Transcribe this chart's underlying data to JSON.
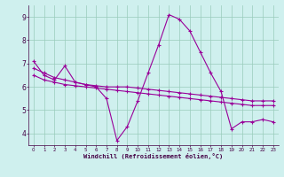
{
  "title": "",
  "xlabel": "Windchill (Refroidissement éolien,°C)",
  "bg_color": "#cff0ee",
  "line_color": "#990099",
  "grid_color": "#99ccbb",
  "xlim": [
    -0.5,
    23.5
  ],
  "ylim": [
    3.5,
    9.5
  ],
  "xticks": [
    0,
    1,
    2,
    3,
    4,
    5,
    6,
    7,
    8,
    9,
    10,
    11,
    12,
    13,
    14,
    15,
    16,
    17,
    18,
    19,
    20,
    21,
    22,
    23
  ],
  "yticks": [
    4,
    5,
    6,
    7,
    8,
    9
  ],
  "line1_x": [
    0,
    1,
    2,
    3,
    4,
    5,
    6,
    7,
    8,
    9,
    10,
    11,
    12,
    13,
    14,
    15,
    16,
    17,
    18,
    19,
    20,
    21,
    22,
    23
  ],
  "line1_y": [
    7.1,
    6.5,
    6.3,
    6.9,
    6.2,
    6.1,
    6.0,
    5.5,
    3.7,
    4.3,
    5.4,
    6.6,
    7.8,
    9.1,
    8.9,
    8.4,
    7.5,
    6.6,
    5.8,
    4.2,
    4.5,
    4.5,
    4.6,
    4.5
  ],
  "line2_x": [
    0,
    1,
    2,
    3,
    4,
    5,
    6,
    7,
    8,
    9,
    10,
    11,
    12,
    13,
    14,
    15,
    16,
    17,
    18,
    19,
    20,
    21,
    22,
    23
  ],
  "line2_y": [
    6.5,
    6.3,
    6.2,
    6.1,
    6.05,
    6.0,
    5.95,
    5.9,
    5.85,
    5.8,
    5.75,
    5.7,
    5.65,
    5.6,
    5.55,
    5.5,
    5.45,
    5.4,
    5.35,
    5.3,
    5.25,
    5.2,
    5.2,
    5.2
  ],
  "line3_x": [
    0,
    1,
    2,
    3,
    4,
    5,
    6,
    7,
    8,
    9,
    10,
    11,
    12,
    13,
    14,
    15,
    16,
    17,
    18,
    19,
    20,
    21,
    22,
    23
  ],
  "line3_y": [
    6.8,
    6.6,
    6.4,
    6.3,
    6.2,
    6.1,
    6.05,
    6.0,
    6.0,
    6.0,
    5.95,
    5.9,
    5.85,
    5.8,
    5.75,
    5.7,
    5.65,
    5.6,
    5.55,
    5.5,
    5.45,
    5.4,
    5.4,
    5.4
  ]
}
